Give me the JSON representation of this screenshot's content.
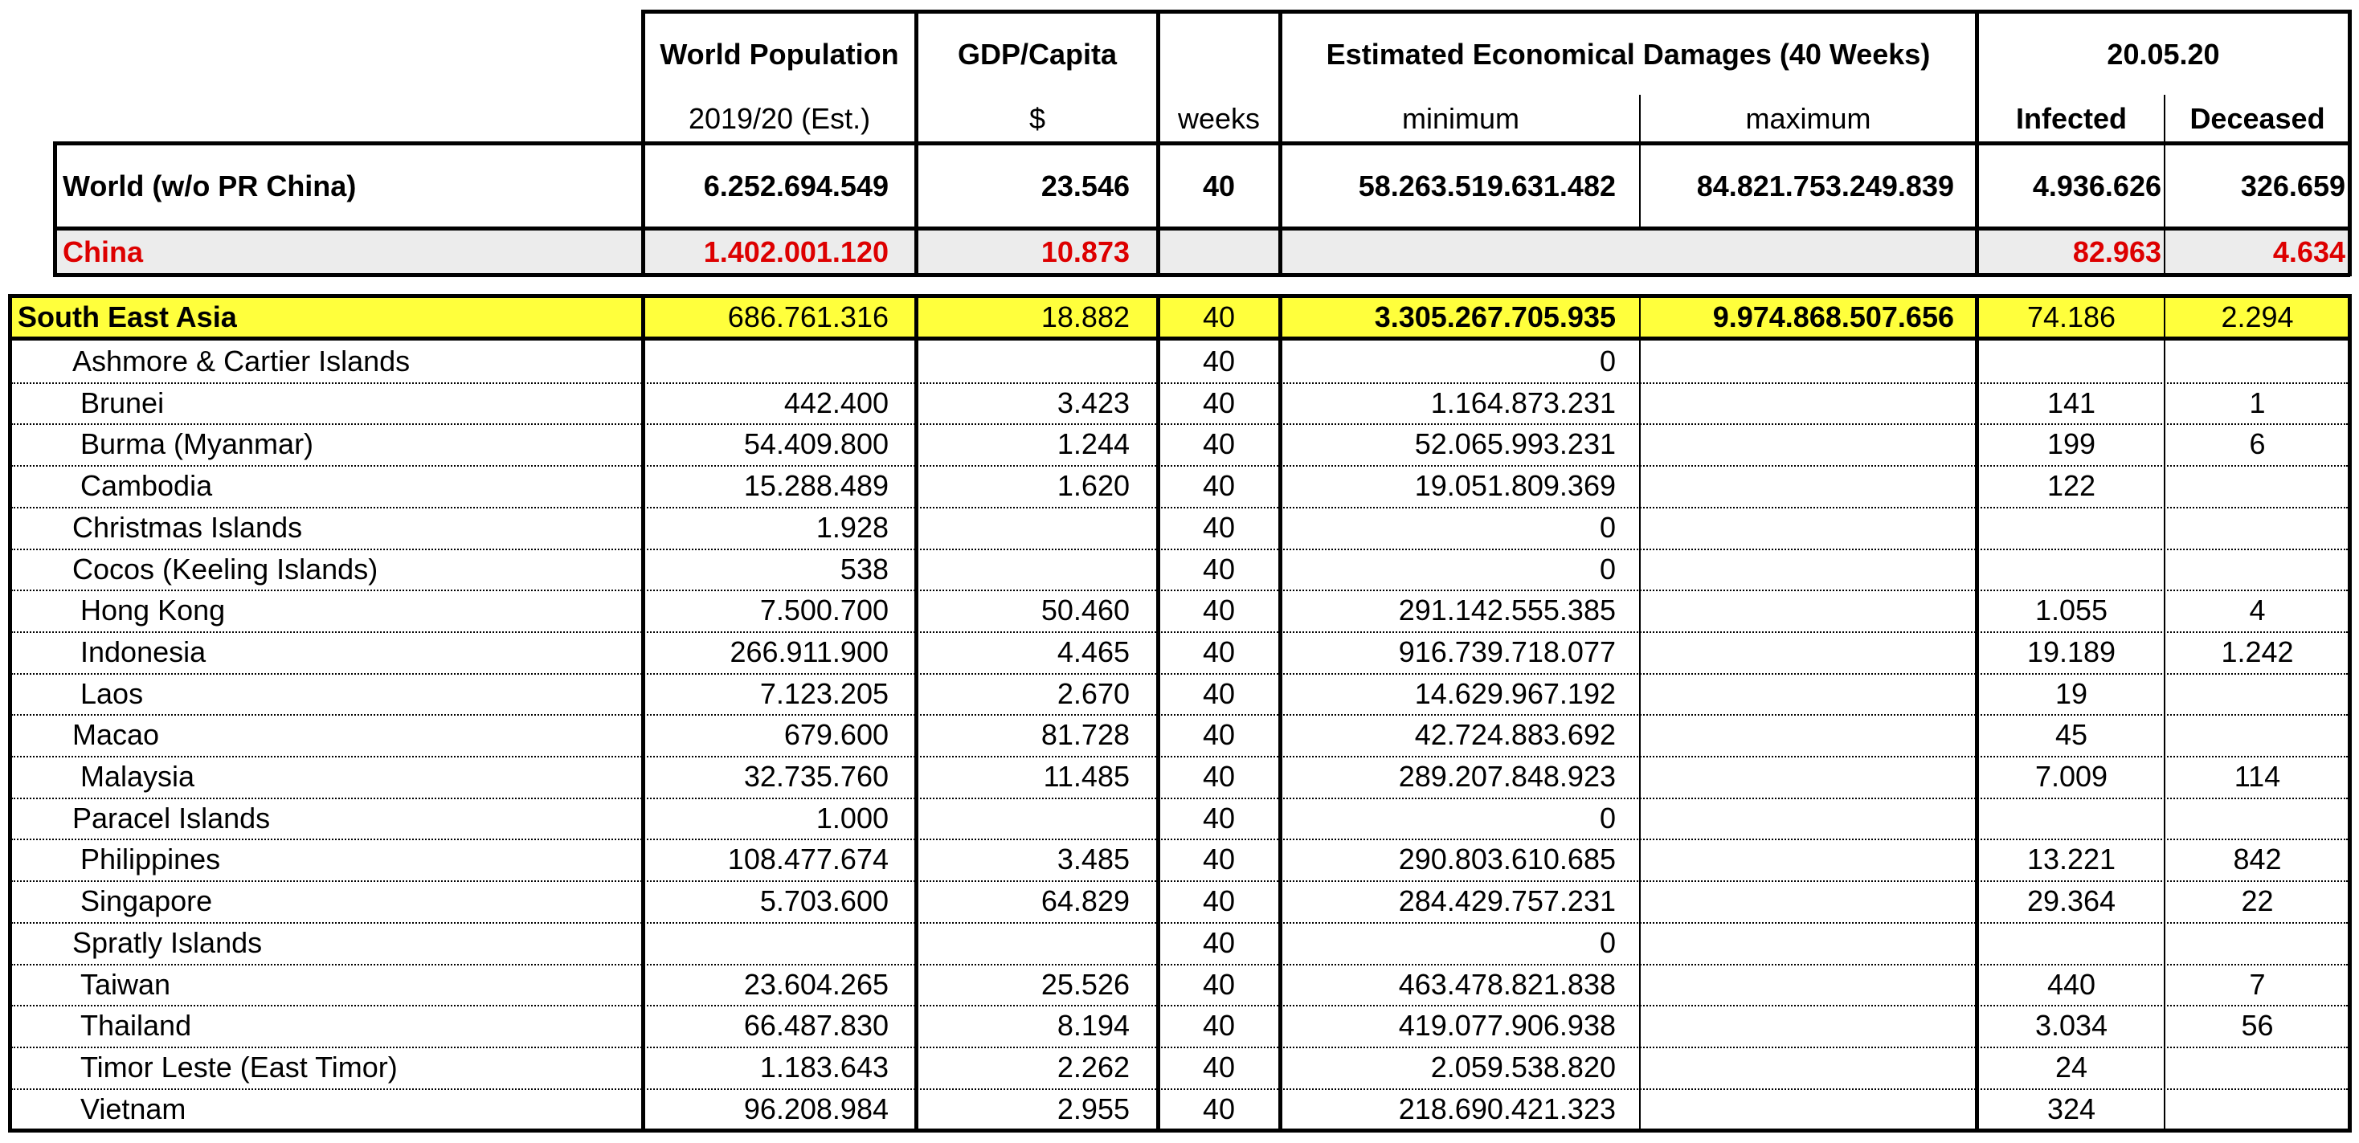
{
  "header": {
    "world_population_title": "World Population",
    "world_population_sub": "2019/20 (Est.)",
    "gdp_title": "GDP/Capita",
    "gdp_sub": "$",
    "weeks_sub": "weeks",
    "damages_title": "Estimated Economical Damages (40 Weeks)",
    "damages_min": "minimum",
    "damages_max": "maximum",
    "date_title": "20.05.20",
    "infected": "Infected",
    "deceased": "Deceased"
  },
  "world": {
    "name": "World (w/o PR China)",
    "population": "6.252.694.549",
    "gdp": "23.546",
    "weeks": "40",
    "min": "58.263.519.631.482",
    "max": "84.821.753.249.839",
    "infected": "4.936.626",
    "deceased": "326.659"
  },
  "china": {
    "name": "China",
    "population": "1.402.001.120",
    "gdp": "10.873",
    "infected": "82.963",
    "deceased": "4.634"
  },
  "region": {
    "name": "South East Asia",
    "population": "686.761.316",
    "gdp": "18.882",
    "weeks": "40",
    "min": "3.305.267.705.935",
    "max": "9.974.868.507.656",
    "infected": "74.186",
    "deceased": "2.294"
  },
  "rows": [
    {
      "name": "Ashmore & Cartier Islands",
      "population": "",
      "gdp": "",
      "weeks": "40",
      "min": "0",
      "infected": "",
      "deceased": ""
    },
    {
      "name": "Brunei",
      "population": "442.400",
      "gdp": "3.423",
      "weeks": "40",
      "min": "1.164.873.231",
      "infected": "141",
      "deceased": "1"
    },
    {
      "name": "Burma (Myanmar)",
      "population": "54.409.800",
      "gdp": "1.244",
      "weeks": "40",
      "min": "52.065.993.231",
      "infected": "199",
      "deceased": "6"
    },
    {
      "name": "Cambodia",
      "population": "15.288.489",
      "gdp": "1.620",
      "weeks": "40",
      "min": "19.051.809.369",
      "infected": "122",
      "deceased": ""
    },
    {
      "name": "Christmas Islands",
      "population": "1.928",
      "gdp": "",
      "weeks": "40",
      "min": "0",
      "infected": "",
      "deceased": ""
    },
    {
      "name": "Cocos (Keeling Islands)",
      "population": "538",
      "gdp": "",
      "weeks": "40",
      "min": "0",
      "infected": "",
      "deceased": ""
    },
    {
      "name": "Hong Kong",
      "population": "7.500.700",
      "gdp": "50.460",
      "weeks": "40",
      "min": "291.142.555.385",
      "infected": "1.055",
      "deceased": "4"
    },
    {
      "name": "Indonesia",
      "population": "266.911.900",
      "gdp": "4.465",
      "weeks": "40",
      "min": "916.739.718.077",
      "infected": "19.189",
      "deceased": "1.242"
    },
    {
      "name": "Laos",
      "population": "7.123.205",
      "gdp": "2.670",
      "weeks": "40",
      "min": "14.629.967.192",
      "infected": "19",
      "deceased": ""
    },
    {
      "name": "Macao",
      "population": "679.600",
      "gdp": "81.728",
      "weeks": "40",
      "min": "42.724.883.692",
      "infected": "45",
      "deceased": ""
    },
    {
      "name": "Malaysia",
      "population": "32.735.760",
      "gdp": "11.485",
      "weeks": "40",
      "min": "289.207.848.923",
      "infected": "7.009",
      "deceased": "114"
    },
    {
      "name": "Paracel Islands",
      "population": "1.000",
      "gdp": "",
      "weeks": "40",
      "min": "0",
      "infected": "",
      "deceased": ""
    },
    {
      "name": "Philippines",
      "population": "108.477.674",
      "gdp": "3.485",
      "weeks": "40",
      "min": "290.803.610.685",
      "infected": "13.221",
      "deceased": "842"
    },
    {
      "name": "Singapore",
      "population": "5.703.600",
      "gdp": "64.829",
      "weeks": "40",
      "min": "284.429.757.231",
      "infected": "29.364",
      "deceased": "22"
    },
    {
      "name": "Spratly Islands",
      "population": "",
      "gdp": "",
      "weeks": "40",
      "min": "0",
      "infected": "",
      "deceased": ""
    },
    {
      "name": "Taiwan",
      "population": "23.604.265",
      "gdp": "25.526",
      "weeks": "40",
      "min": "463.478.821.838",
      "infected": "440",
      "deceased": "7"
    },
    {
      "name": "Thailand",
      "population": "66.487.830",
      "gdp": "8.194",
      "weeks": "40",
      "min": "419.077.906.938",
      "infected": "3.034",
      "deceased": "56"
    },
    {
      "name": "Timor Leste (East Timor)",
      "population": "1.183.643",
      "gdp": "2.262",
      "weeks": "40",
      "min": "2.059.538.820",
      "infected": "24",
      "deceased": ""
    },
    {
      "name": "Vietnam",
      "population": "96.208.984",
      "gdp": "2.955",
      "weeks": "40",
      "min": "218.690.421.323",
      "infected": "324",
      "deceased": ""
    }
  ],
  "colors": {
    "region_fill": "#ffff3c",
    "china_fill": "#ececec",
    "china_text": "#dd0000"
  }
}
